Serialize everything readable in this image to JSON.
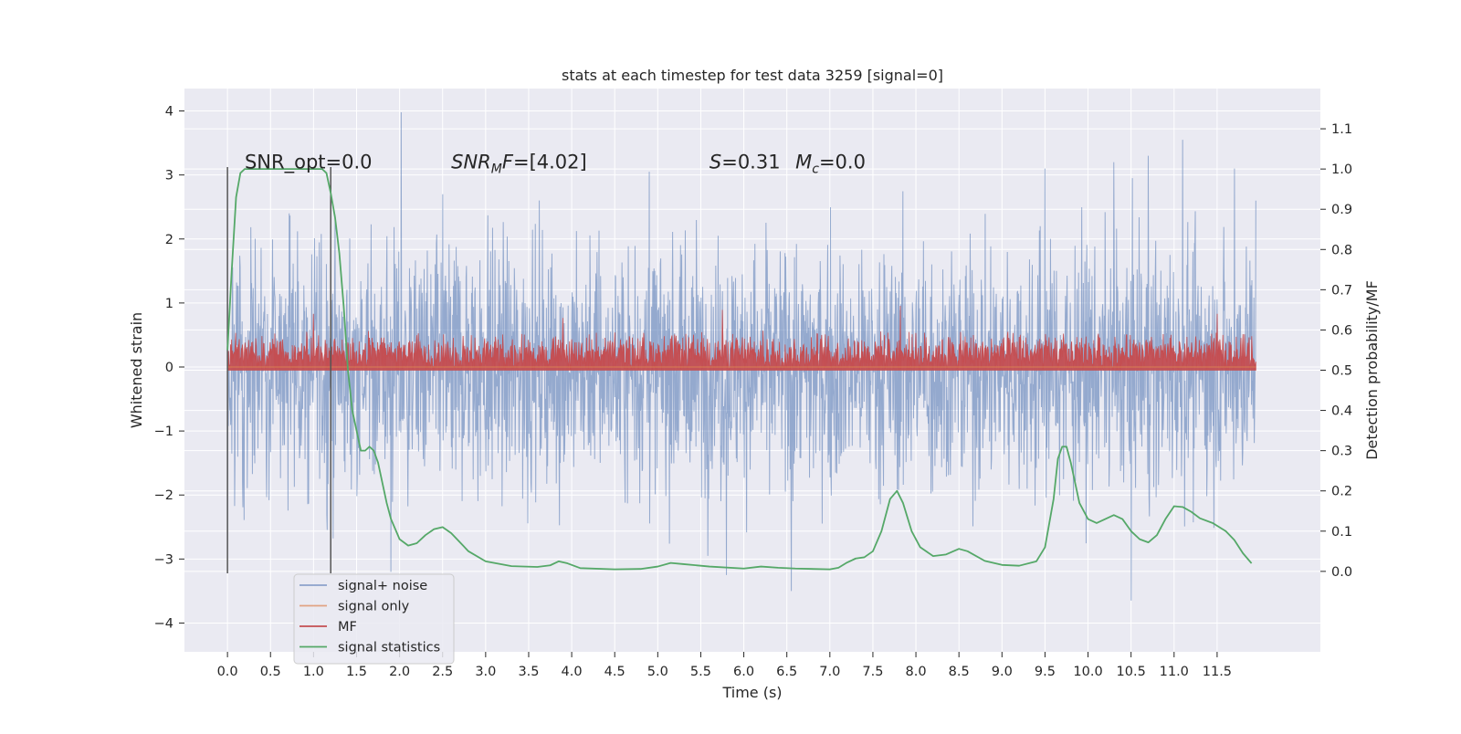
{
  "chart_data": {
    "type": "line",
    "title": "stats at each timestep for test data 3259 [signal=0]",
    "xlabel": "Time (s)",
    "ylabel": "Whitened strain",
    "ylabel_right": "Detection probability/MF",
    "xlim": [
      -0.5,
      12.7
    ],
    "ylim": [
      -4.45,
      4.35
    ],
    "ylim_right": [
      -0.2,
      1.2
    ],
    "x_ticks": [
      0.0,
      0.5,
      1.0,
      1.5,
      2.0,
      2.5,
      3.0,
      3.5,
      4.0,
      4.5,
      5.0,
      5.5,
      6.0,
      6.5,
      7.0,
      7.5,
      8.0,
      8.5,
      9.0,
      9.5,
      10.0,
      10.5,
      11.0,
      11.5
    ],
    "x_tick_labels": [
      "0.0",
      "0.5",
      "1.0",
      "1.5",
      "2.0",
      "2.5",
      "3.0",
      "3.5",
      "4.0",
      "4.5",
      "5.0",
      "5.5",
      "6.0",
      "6.5",
      "7.0",
      "7.5",
      "8.0",
      "8.5",
      "9.0",
      "9.5",
      "10.0",
      "10.5",
      "11.0",
      "11.5"
    ],
    "y_ticks": [
      -4,
      -3,
      -2,
      -1,
      0,
      1,
      2,
      3,
      4
    ],
    "y_tick_labels": [
      "−4",
      "−3",
      "−2",
      "−1",
      "0",
      "1",
      "2",
      "3",
      "4"
    ],
    "y_ticks_right": [
      0.0,
      0.1,
      0.2,
      0.3,
      0.4,
      0.5,
      0.6,
      0.7,
      0.8,
      0.9,
      1.0,
      1.1
    ],
    "y_tick_labels_right": [
      "0.0",
      "0.1",
      "0.2",
      "0.3",
      "0.4",
      "0.5",
      "0.6",
      "0.7",
      "0.8",
      "0.9",
      "1.0",
      "1.1"
    ],
    "grid": true,
    "legend_position": "lower-left",
    "series": [
      {
        "name": "signal+ noise",
        "color": "#4c72b0",
        "axis": "left",
        "kind": "noise",
        "x_range": [
          0.0,
          11.95
        ],
        "peaks": [
          [
            0.0,
            -2.85
          ],
          [
            1.9,
            -3.2
          ],
          [
            2.02,
            3.98
          ],
          [
            2.5,
            2.7
          ],
          [
            4.9,
            3.05
          ],
          [
            5.8,
            -3.25
          ],
          [
            6.55,
            -3.5
          ],
          [
            9.5,
            3.1
          ],
          [
            10.3,
            3.2
          ],
          [
            10.5,
            -3.65
          ],
          [
            10.7,
            3.3
          ],
          [
            11.1,
            3.55
          ],
          [
            11.7,
            3.1
          ],
          [
            11.95,
            2.6
          ]
        ]
      },
      {
        "name": "signal only",
        "color": "#dd8452",
        "axis": "left",
        "x": [
          0.0,
          11.95
        ],
        "y": [
          0.0,
          0.0
        ]
      },
      {
        "name": "MF",
        "color": "#c44e52",
        "axis": "right",
        "kind": "noise",
        "x_range": [
          0.0,
          11.95
        ],
        "baseline": 0.5,
        "typical_max": 0.6,
        "peaks": [
          [
            1.0,
            0.64
          ],
          [
            3.9,
            0.63
          ],
          [
            5.75,
            0.65
          ],
          [
            7.82,
            0.66
          ],
          [
            11.5,
            0.64
          ]
        ]
      },
      {
        "name": "signal statistics",
        "color": "#55a868",
        "axis": "right",
        "x": [
          0.0,
          0.05,
          0.1,
          0.15,
          0.2,
          0.3,
          0.5,
          0.8,
          1.0,
          1.1,
          1.15,
          1.2,
          1.25,
          1.3,
          1.35,
          1.4,
          1.45,
          1.5,
          1.55,
          1.6,
          1.65,
          1.7,
          1.75,
          1.8,
          1.85,
          1.9,
          2.0,
          2.1,
          2.2,
          2.3,
          2.4,
          2.5,
          2.6,
          2.8,
          3.0,
          3.3,
          3.6,
          3.75,
          3.85,
          3.95,
          4.1,
          4.5,
          4.8,
          5.0,
          5.15,
          5.3,
          5.6,
          6.0,
          6.2,
          6.4,
          6.6,
          7.0,
          7.1,
          7.2,
          7.3,
          7.4,
          7.5,
          7.6,
          7.7,
          7.78,
          7.85,
          7.95,
          8.05,
          8.2,
          8.35,
          8.5,
          8.6,
          8.8,
          9.0,
          9.2,
          9.4,
          9.5,
          9.6,
          9.65,
          9.7,
          9.75,
          9.8,
          9.85,
          9.9,
          10.0,
          10.1,
          10.2,
          10.3,
          10.4,
          10.5,
          10.6,
          10.7,
          10.8,
          10.9,
          11.0,
          11.1,
          11.2,
          11.3,
          11.45,
          11.6,
          11.7,
          11.8,
          11.9
        ],
        "y": [
          0.55,
          0.75,
          0.93,
          0.99,
          1.0,
          1.0,
          1.0,
          1.0,
          1.0,
          1.0,
          0.99,
          0.94,
          0.88,
          0.79,
          0.66,
          0.5,
          0.4,
          0.35,
          0.3,
          0.3,
          0.31,
          0.3,
          0.27,
          0.22,
          0.17,
          0.13,
          0.08,
          0.064,
          0.07,
          0.09,
          0.105,
          0.11,
          0.095,
          0.05,
          0.025,
          0.013,
          0.011,
          0.015,
          0.025,
          0.02,
          0.008,
          0.005,
          0.006,
          0.012,
          0.021,
          0.018,
          0.012,
          0.007,
          0.012,
          0.009,
          0.007,
          0.005,
          0.009,
          0.022,
          0.032,
          0.035,
          0.05,
          0.1,
          0.18,
          0.2,
          0.17,
          0.1,
          0.06,
          0.038,
          0.042,
          0.056,
          0.05,
          0.026,
          0.016,
          0.014,
          0.025,
          0.06,
          0.18,
          0.28,
          0.31,
          0.31,
          0.27,
          0.22,
          0.17,
          0.13,
          0.12,
          0.13,
          0.14,
          0.13,
          0.1,
          0.08,
          0.072,
          0.09,
          0.13,
          0.162,
          0.16,
          0.148,
          0.132,
          0.12,
          0.1,
          0.078,
          0.045,
          0.02
        ]
      }
    ],
    "vertical_lines": [
      0.0,
      1.2
    ],
    "annotations": [
      {
        "text": "SNR_opt=0.0",
        "x": 0.2,
        "y": 3.1
      },
      {
        "text": "SNR",
        "sub": "M",
        "text_after": "F=[4.02]",
        "x": 2.6,
        "y": 3.1
      },
      {
        "text": "S",
        "text_after": "=0.31",
        "x": 5.6,
        "y": 3.1
      },
      {
        "text": "M",
        "sub": "c",
        "text_after": "=0.0",
        "x": 6.6,
        "y": 3.1
      }
    ]
  },
  "legend": {
    "items": [
      {
        "label": "signal+ noise",
        "color": "#4c72b0"
      },
      {
        "label": "signal only",
        "color": "#dd8452"
      },
      {
        "label": "MF",
        "color": "#c44e52"
      },
      {
        "label": "signal statistics",
        "color": "#55a868"
      }
    ]
  },
  "colors": {
    "plot_background": "#eaeaf2",
    "grid": "#ffffff",
    "vline": "#555555"
  }
}
